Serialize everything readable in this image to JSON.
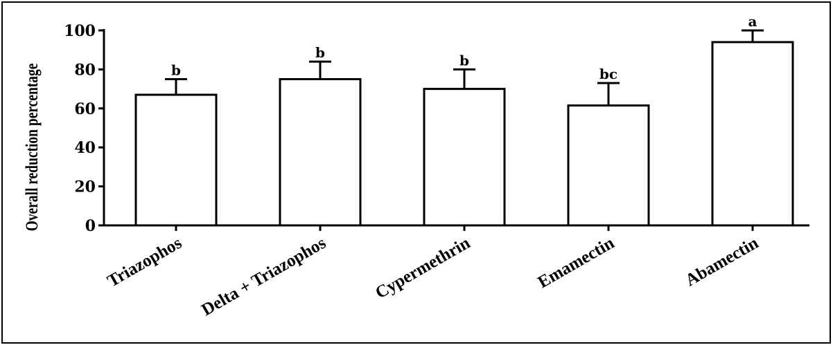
{
  "chart_data": {
    "type": "bar",
    "title": "",
    "xlabel": "",
    "ylabel": "Overall reduction percentage",
    "ylim": [
      0,
      100
    ],
    "yticks": [
      "0",
      "20",
      "40",
      "60",
      "80",
      "100"
    ],
    "categories": [
      "Triazophos",
      "Delta + Triazophos",
      "Cypermethrin",
      "Emamectin",
      "Abamectin"
    ],
    "values": [
      67,
      75,
      70,
      61.5,
      94
    ],
    "error": [
      8,
      9,
      10,
      11.5,
      6
    ],
    "significance": [
      "b",
      "b",
      "b",
      "bc",
      "a"
    ],
    "bar_fill": "#ffffff",
    "bar_stroke": "#000000",
    "grid": false
  }
}
